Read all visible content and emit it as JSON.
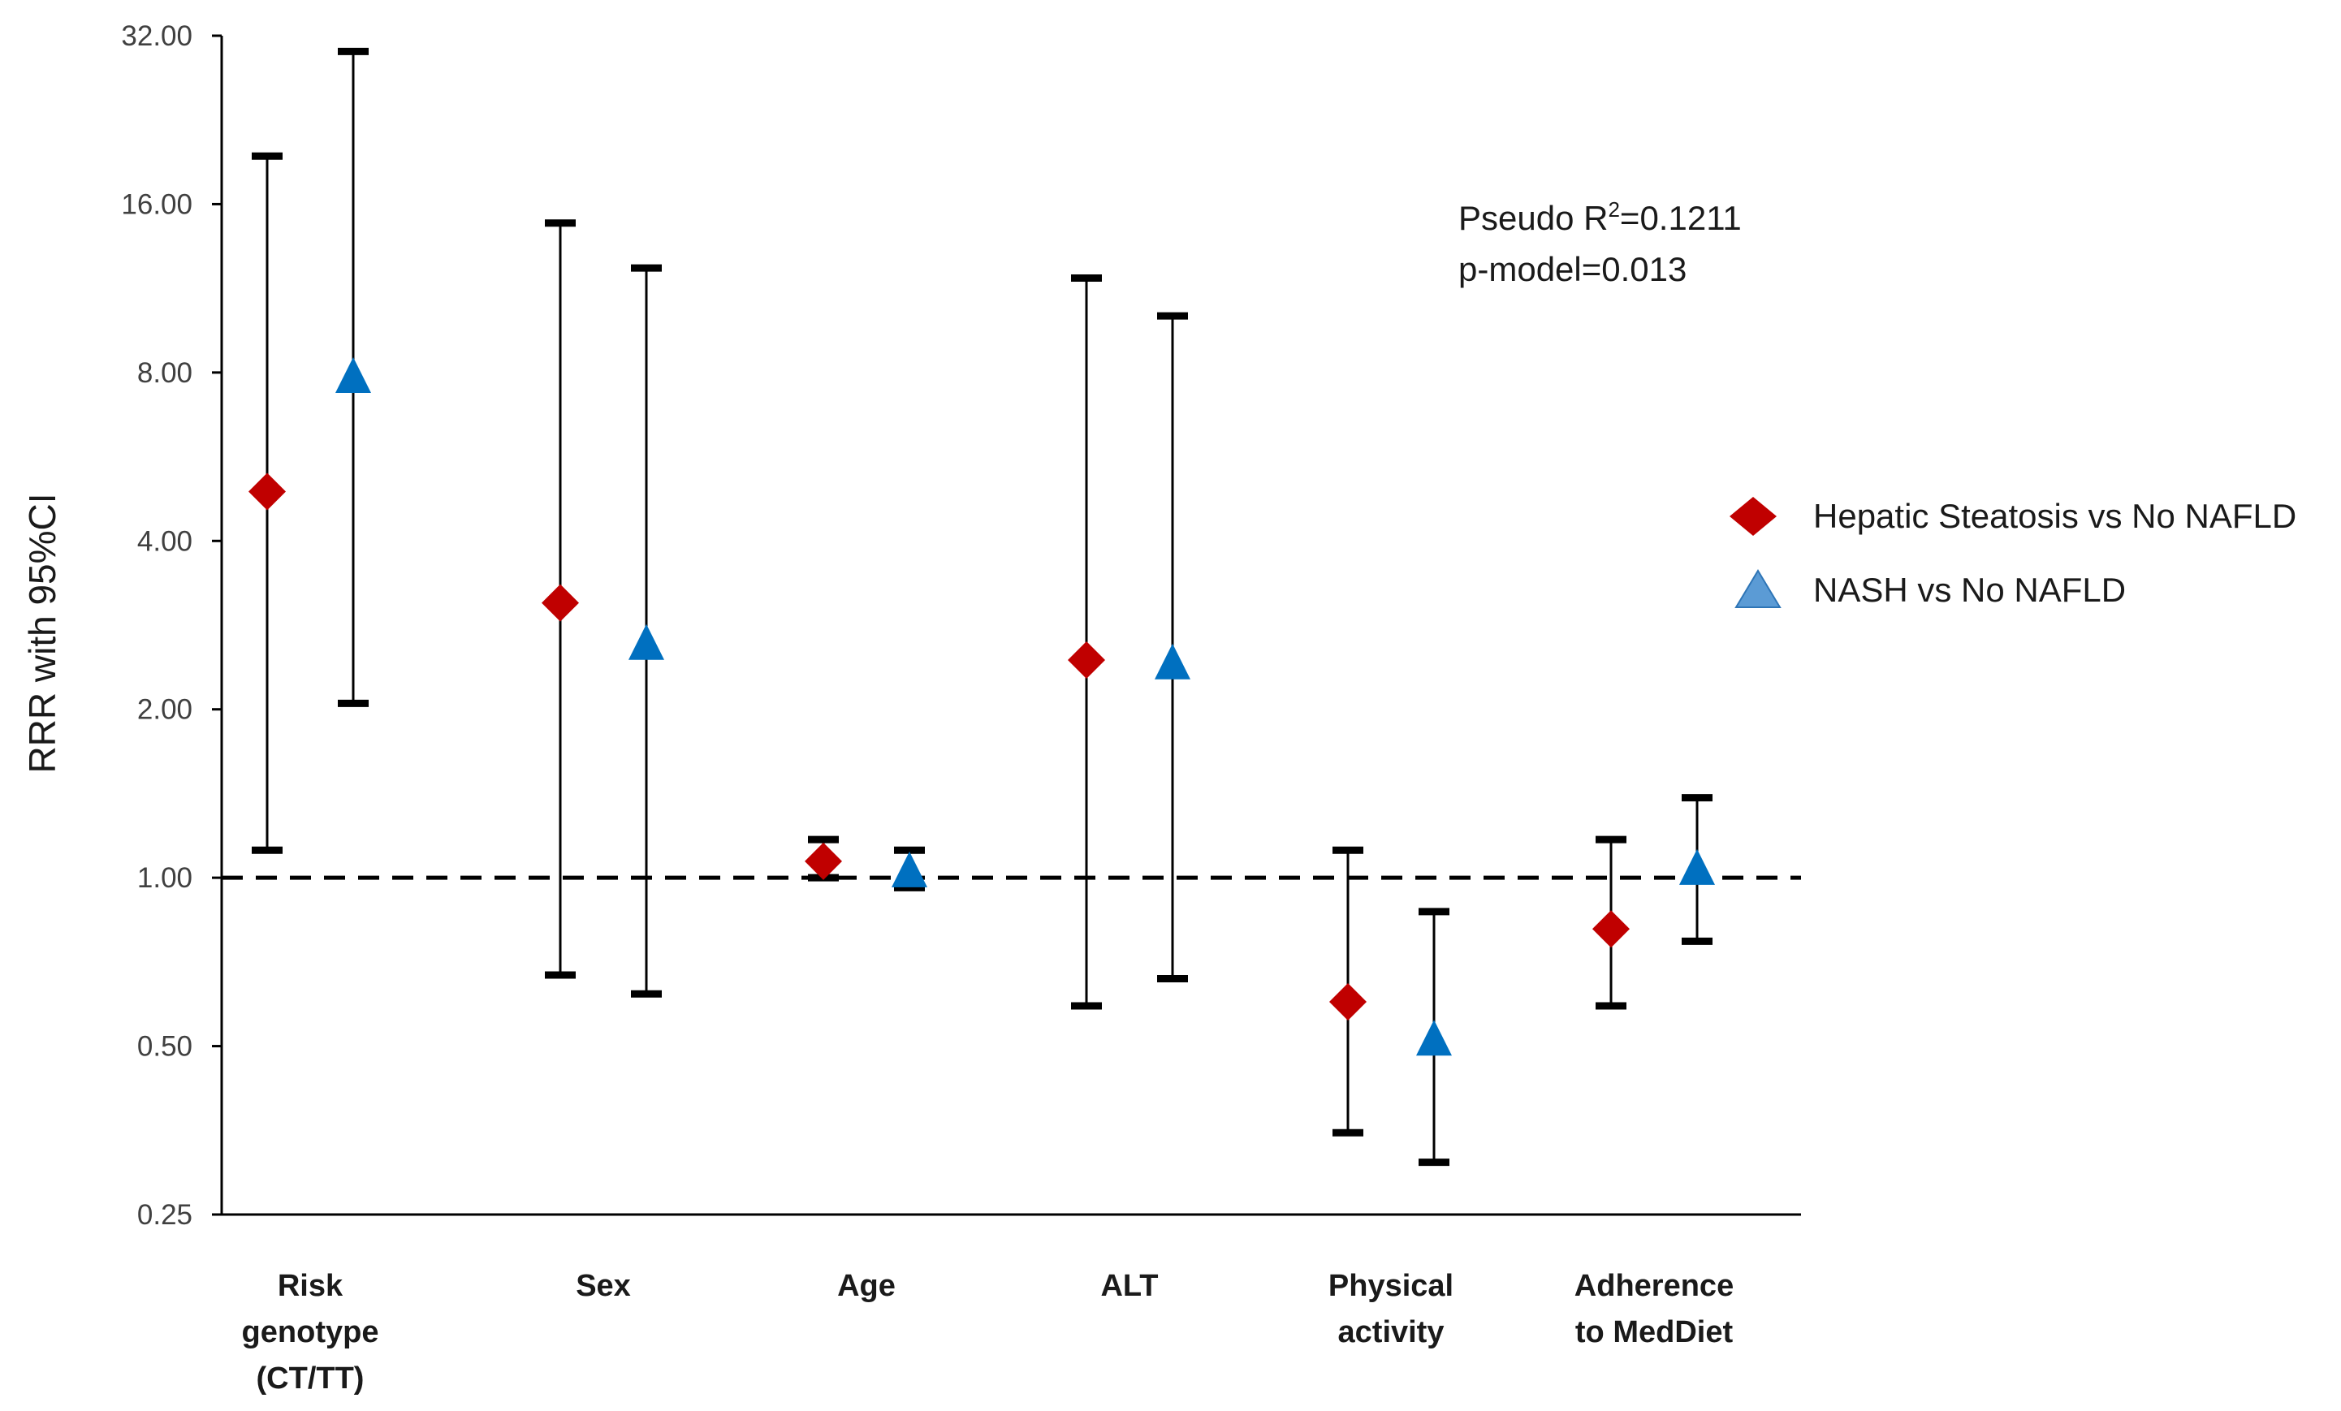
{
  "chart_data": {
    "type": "scatter",
    "subtype": "forest-plot-log-scale",
    "ylabel": "RRR with 95%CI",
    "yscale": "log2",
    "ylim": [
      0.25,
      32
    ],
    "yticks": [
      "0.25",
      "0.50",
      "1.00",
      "2.00",
      "4.00",
      "8.00",
      "16.00",
      "32.00"
    ],
    "ytick_values": [
      0.25,
      0.5,
      1,
      2,
      4,
      8,
      16,
      32
    ],
    "reference_line": 1.0,
    "categories": [
      [
        "Risk",
        "genotype",
        "(CT/TT)"
      ],
      [
        "Sex"
      ],
      [
        "Age"
      ],
      [
        "ALT"
      ],
      [
        "Physical",
        "activity"
      ],
      [
        "Adherence",
        "to MedDiet"
      ]
    ],
    "series": [
      {
        "name": "Hepatic Steatosis vs No NAFLD",
        "marker": "diamond",
        "color": "#C00000",
        "points": [
          {
            "value": 4.9,
            "low": 1.12,
            "high": 19.5
          },
          {
            "value": 3.1,
            "low": 0.67,
            "high": 14.8
          },
          {
            "value": 1.07,
            "low": 1.0,
            "high": 1.17
          },
          {
            "value": 2.45,
            "low": 0.59,
            "high": 11.8
          },
          {
            "value": 0.6,
            "low": 0.35,
            "high": 1.12
          },
          {
            "value": 0.81,
            "low": 0.59,
            "high": 1.17
          }
        ]
      },
      {
        "name": "NASH vs No NAFLD",
        "marker": "triangle",
        "color": "#0070C0",
        "points": [
          {
            "value": 7.8,
            "low": 2.05,
            "high": 30.0
          },
          {
            "value": 2.6,
            "low": 0.62,
            "high": 12.3
          },
          {
            "value": 1.02,
            "low": 0.96,
            "high": 1.12
          },
          {
            "value": 2.4,
            "low": 0.66,
            "high": 10.1
          },
          {
            "value": 0.51,
            "low": 0.31,
            "high": 0.87
          },
          {
            "value": 1.03,
            "low": 0.77,
            "high": 1.39
          }
        ]
      }
    ],
    "annotation": {
      "line1_prefix": "Pseudo R",
      "line1_sup": "2",
      "line1_suffix": "=0.1211",
      "line2": "p-model=0.013"
    },
    "legend": {
      "position": "right",
      "items": [
        "Hepatic Steatosis vs No NAFLD",
        "NASH vs No NAFLD"
      ]
    }
  }
}
